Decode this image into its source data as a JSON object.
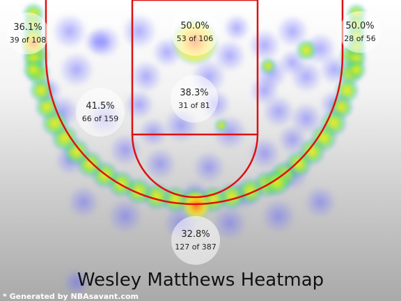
{
  "chart_data": {
    "type": "heatmap",
    "title": "Wesley Matthews Heatmap",
    "credit": "* Generated by NBAsavant.com",
    "zones": [
      {
        "zone": "Left Corner 3",
        "pct": "36.1%",
        "made": 39,
        "attempts": 108,
        "label": "39 of 108"
      },
      {
        "zone": "Restricted Area",
        "pct": "50.0%",
        "made": 53,
        "attempts": 106,
        "label": "53 of 106"
      },
      {
        "zone": "Right Corner 3",
        "pct": "50.0%",
        "made": 28,
        "attempts": 56,
        "label": "28 of 56"
      },
      {
        "zone": "Paint (Non-RA)",
        "pct": "38.3%",
        "made": 31,
        "attempts": 81,
        "label": "31 of 81"
      },
      {
        "zone": "Mid-Range",
        "pct": "41.5%",
        "made": 66,
        "attempts": 159,
        "label": "66 of 159"
      },
      {
        "zone": "Above the Break 3",
        "pct": "32.8%",
        "made": 127,
        "attempts": 387,
        "label": "127 of 387"
      }
    ],
    "colors": {
      "court_lines": "#dd1111",
      "heat_low": "#6b6bff",
      "heat_mid": "#7fe04a",
      "heat_high": "#ffe81a",
      "heat_peak": "#ff4a1a"
    }
  }
}
